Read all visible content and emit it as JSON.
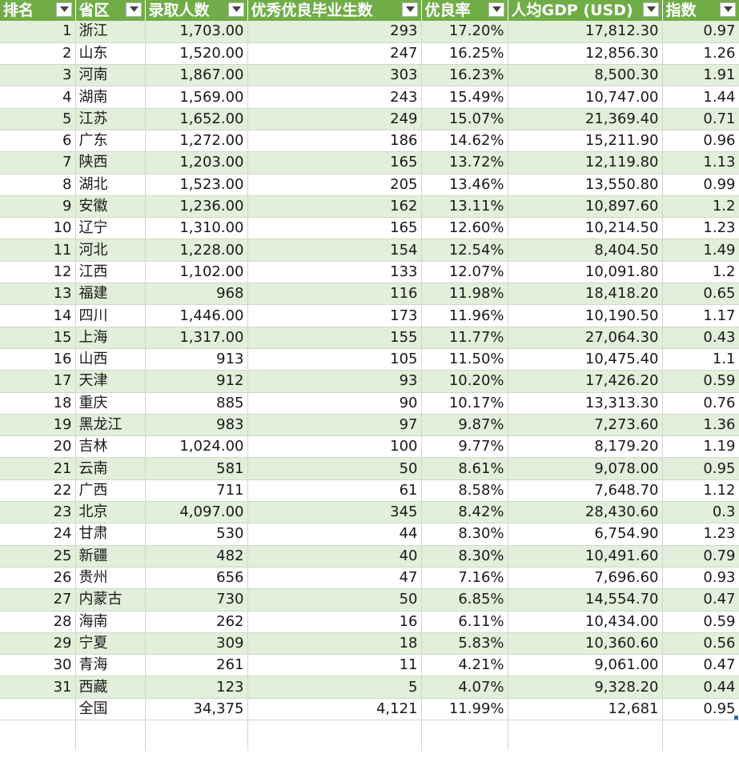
{
  "colors": {
    "header_bg": "#70ad47",
    "band": "#e2efda"
  },
  "headers": [
    {
      "label": "排名"
    },
    {
      "label": "省区"
    },
    {
      "label": "录取人数"
    },
    {
      "label": "优秀优良毕业生数"
    },
    {
      "label": "优良率"
    },
    {
      "label": "人均GDP (USD)"
    },
    {
      "label": "指数"
    }
  ],
  "rows": [
    [
      "1",
      "浙江",
      "1,703.00",
      "293",
      "17.20%",
      "17,812.30",
      "0.97"
    ],
    [
      "2",
      "山东",
      "1,520.00",
      "247",
      "16.25%",
      "12,856.30",
      "1.26"
    ],
    [
      "3",
      "河南",
      "1,867.00",
      "303",
      "16.23%",
      "8,500.30",
      "1.91"
    ],
    [
      "4",
      "湖南",
      "1,569.00",
      "243",
      "15.49%",
      "10,747.00",
      "1.44"
    ],
    [
      "5",
      "江苏",
      "1,652.00",
      "249",
      "15.07%",
      "21,369.40",
      "0.71"
    ],
    [
      "6",
      "广东",
      "1,272.00",
      "186",
      "14.62%",
      "15,211.90",
      "0.96"
    ],
    [
      "7",
      "陕西",
      "1,203.00",
      "165",
      "13.72%",
      "12,119.80",
      "1.13"
    ],
    [
      "8",
      "湖北",
      "1,523.00",
      "205",
      "13.46%",
      "13,550.80",
      "0.99"
    ],
    [
      "9",
      "安徽",
      "1,236.00",
      "162",
      "13.11%",
      "10,897.60",
      "1.2"
    ],
    [
      "10",
      "辽宁",
      "1,310.00",
      "165",
      "12.60%",
      "10,214.50",
      "1.23"
    ],
    [
      "11",
      "河北",
      "1,228.00",
      "154",
      "12.54%",
      "8,404.50",
      "1.49"
    ],
    [
      "12",
      "江西",
      "1,102.00",
      "133",
      "12.07%",
      "10,091.80",
      "1.2"
    ],
    [
      "13",
      "福建",
      "968",
      "116",
      "11.98%",
      "18,418.20",
      "0.65"
    ],
    [
      "14",
      "四川",
      "1,446.00",
      "173",
      "11.96%",
      "10,190.50",
      "1.17"
    ],
    [
      "15",
      "上海",
      "1,317.00",
      "155",
      "11.77%",
      "27,064.30",
      "0.43"
    ],
    [
      "16",
      "山西",
      "913",
      "105",
      "11.50%",
      "10,475.40",
      "1.1"
    ],
    [
      "17",
      "天津",
      "912",
      "93",
      "10.20%",
      "17,426.20",
      "0.59"
    ],
    [
      "18",
      "重庆",
      "885",
      "90",
      "10.17%",
      "13,313.30",
      "0.76"
    ],
    [
      "19",
      "黑龙江",
      "983",
      "97",
      "9.87%",
      "7,273.60",
      "1.36"
    ],
    [
      "20",
      "吉林",
      "1,024.00",
      "100",
      "9.77%",
      "8,179.20",
      "1.19"
    ],
    [
      "21",
      "云南",
      "581",
      "50",
      "8.61%",
      "9,078.00",
      "0.95"
    ],
    [
      "22",
      "广西",
      "711",
      "61",
      "8.58%",
      "7,648.70",
      "1.12"
    ],
    [
      "23",
      "北京",
      "4,097.00",
      "345",
      "8.42%",
      "28,430.60",
      "0.3"
    ],
    [
      "24",
      "甘肃",
      "530",
      "44",
      "8.30%",
      "6,754.90",
      "1.23"
    ],
    [
      "25",
      "新疆",
      "482",
      "40",
      "8.30%",
      "10,491.60",
      "0.79"
    ],
    [
      "26",
      "贵州",
      "656",
      "47",
      "7.16%",
      "7,696.60",
      "0.93"
    ],
    [
      "27",
      "内蒙古",
      "730",
      "50",
      "6.85%",
      "14,554.70",
      "0.47"
    ],
    [
      "28",
      "海南",
      "262",
      "16",
      "6.11%",
      "10,434.00",
      "0.59"
    ],
    [
      "29",
      "宁夏",
      "309",
      "18",
      "5.83%",
      "10,360.60",
      "0.56"
    ],
    [
      "30",
      "青海",
      "261",
      "11",
      "4.21%",
      "9,061.00",
      "0.47"
    ],
    [
      "31",
      "西藏",
      "123",
      "5",
      "4.07%",
      "9,328.20",
      "0.44"
    ]
  ],
  "total": [
    "",
    "全国",
    "34,375",
    "4,121",
    "11.99%",
    "12,681",
    "0.95"
  ]
}
